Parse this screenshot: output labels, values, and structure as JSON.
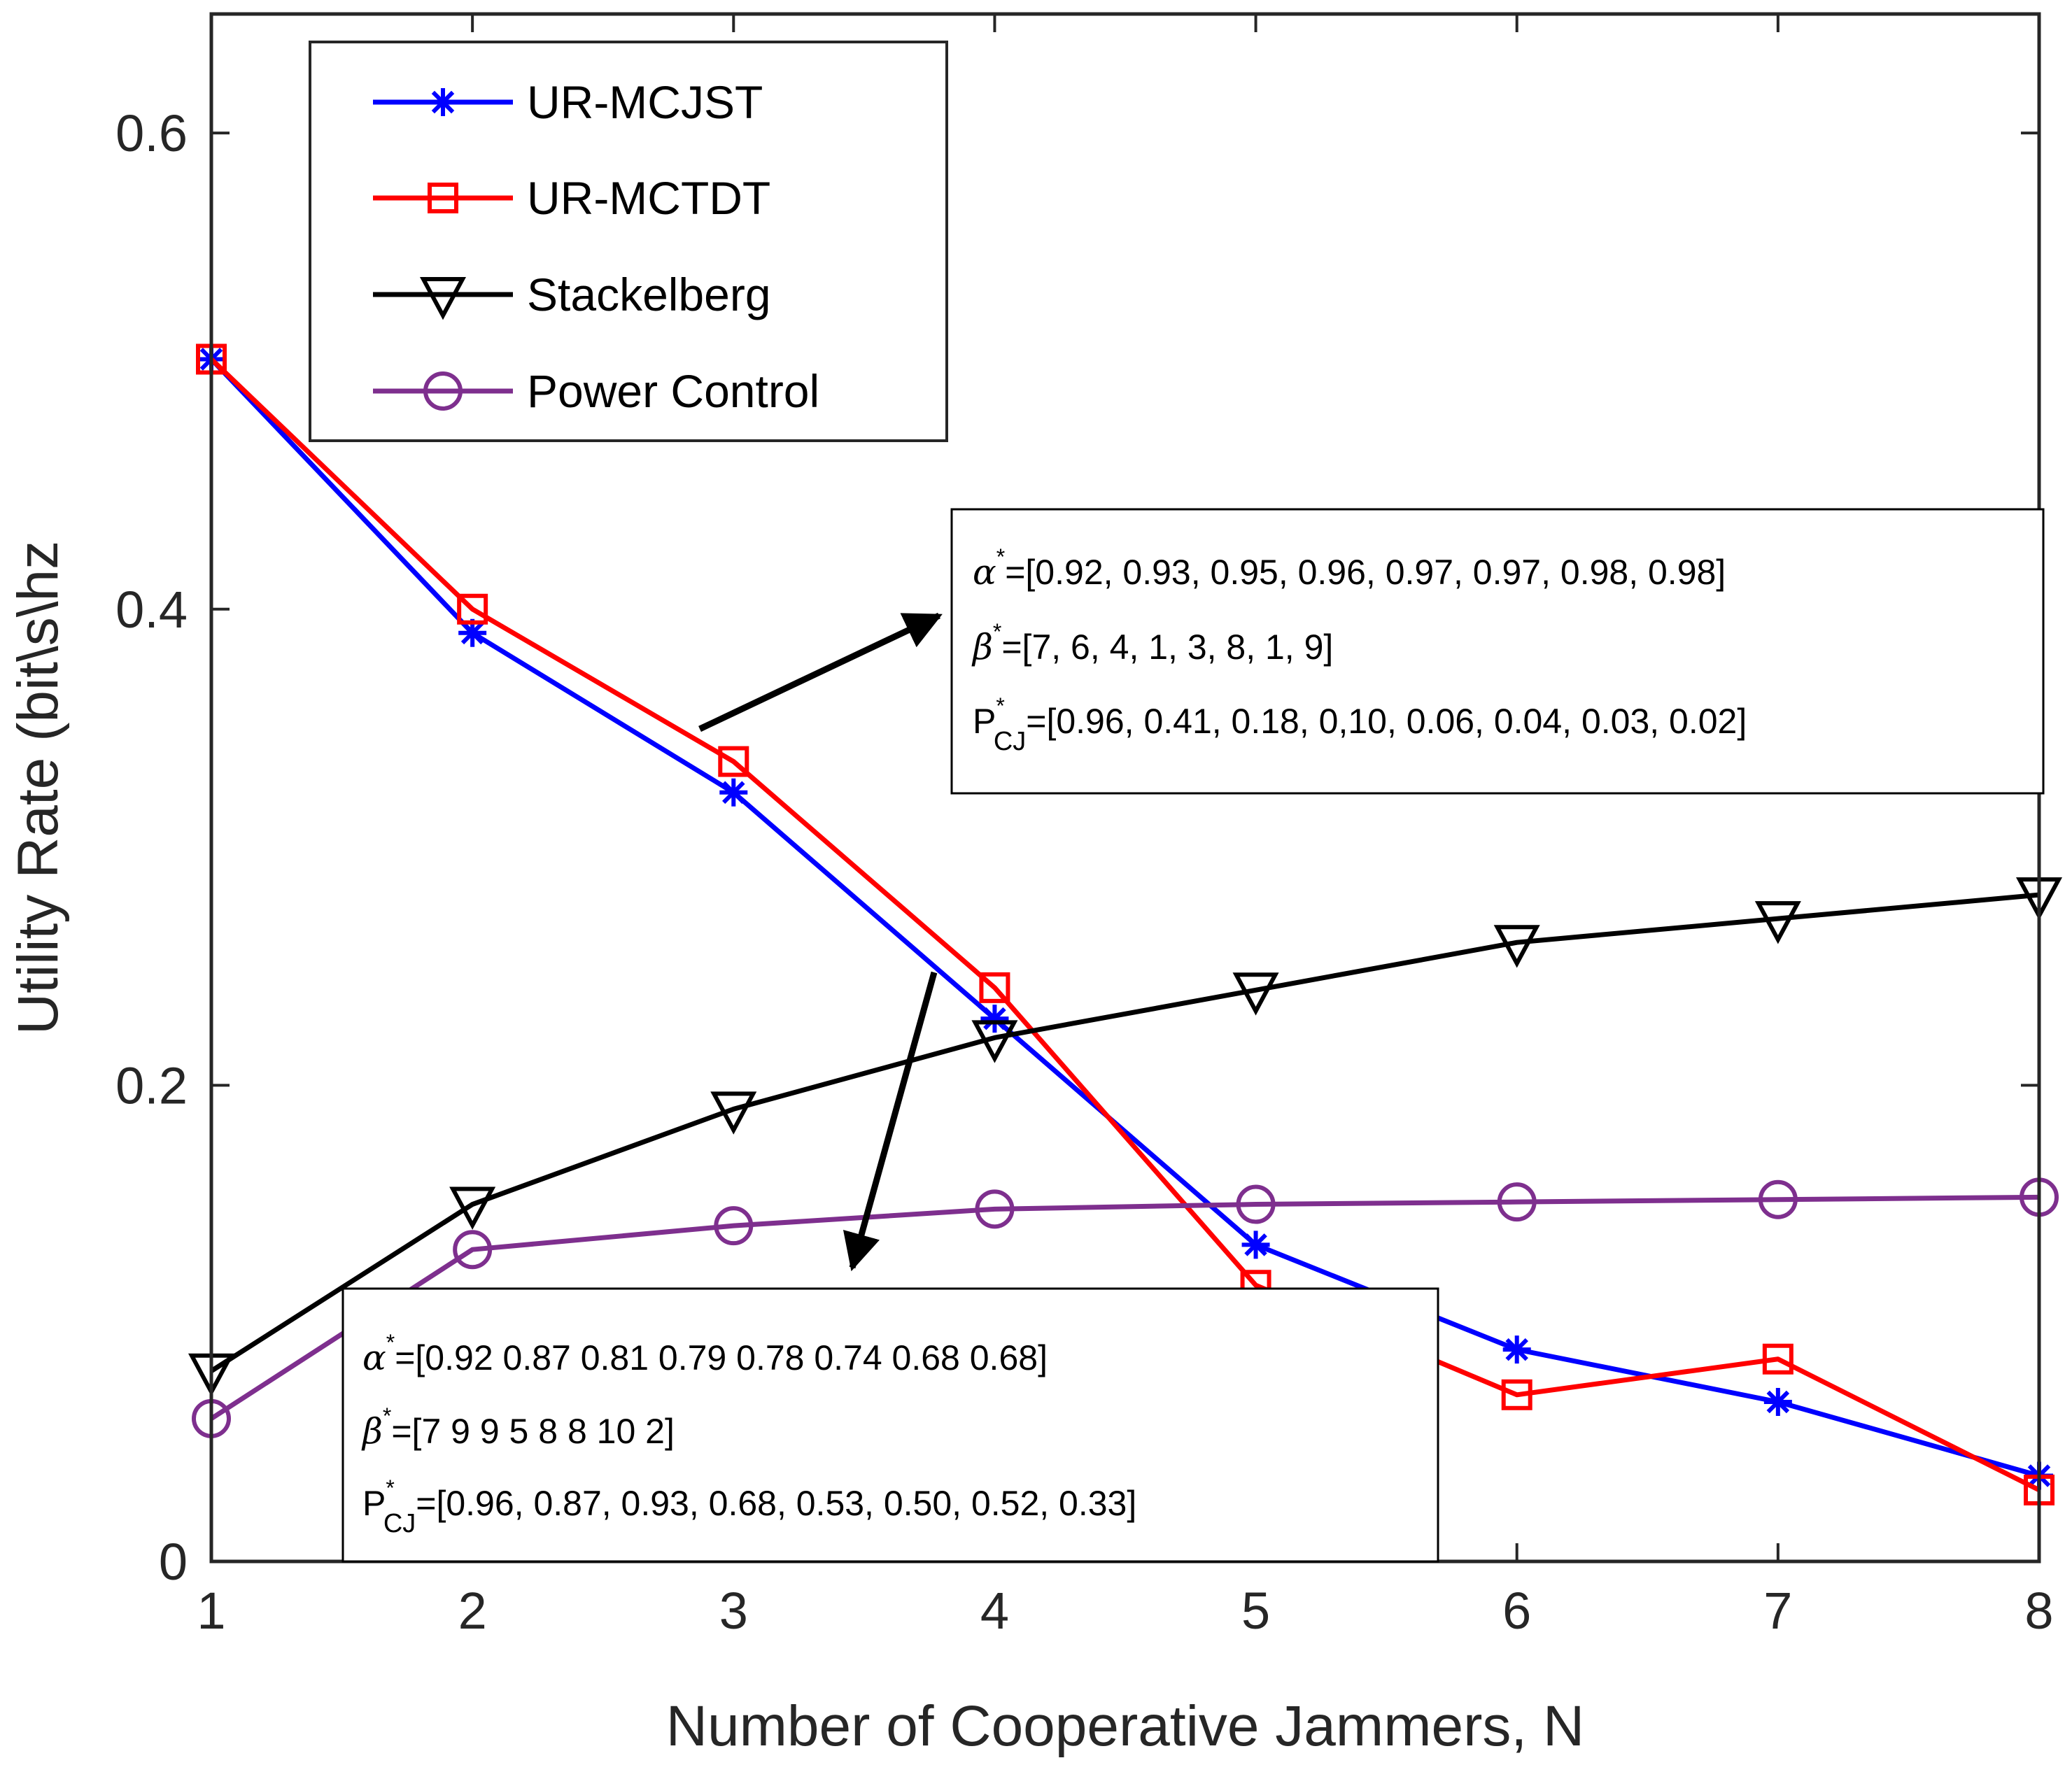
{
  "chart_data": {
    "type": "line",
    "title": "",
    "xlabel": "Number of Cooperative Jammers, N",
    "ylabel": "Utility Rate (bit\\s\\hz",
    "x": [
      1,
      2,
      3,
      4,
      5,
      6,
      7,
      8
    ],
    "xlim": [
      1,
      8
    ],
    "ylim": [
      0,
      0.65
    ],
    "xticks": [
      "1",
      "2",
      "3",
      "4",
      "5",
      "6",
      "7",
      "8"
    ],
    "yticks": [
      {
        "value": 0,
        "label": "0"
      },
      {
        "value": 0.2,
        "label": "0.2"
      },
      {
        "value": 0.4,
        "label": "0.4"
      },
      {
        "value": 0.6,
        "label": "0.6"
      }
    ],
    "grid": false,
    "legend_position": "top-left",
    "series": [
      {
        "name": "UR-MCJST",
        "color": "#0000ff",
        "marker": "asterisk",
        "values": [
          0.505,
          0.39,
          0.323,
          0.228,
          0.133,
          0.089,
          0.067,
          0.036
        ]
      },
      {
        "name": "UR-MCTDT",
        "color": "#ff0000",
        "marker": "square",
        "values": [
          0.505,
          0.4,
          0.336,
          0.241,
          0.116,
          0.07,
          0.085,
          0.03
        ]
      },
      {
        "name": "Stackelberg",
        "color": "#000000",
        "marker": "triangle-down",
        "values": [
          0.08,
          0.15,
          0.19,
          0.22,
          0.24,
          0.26,
          0.27,
          0.28
        ]
      },
      {
        "name": "Power Control",
        "color": "#7e2f8e",
        "marker": "circle",
        "values": [
          0.06,
          0.131,
          0.141,
          0.148,
          0.15,
          0.151,
          0.152,
          0.153
        ]
      }
    ],
    "annotations": [
      {
        "alpha": {
          "symbol": "α",
          "star": "*",
          "text": "=[0.92, 0.93, 0.95, 0.96, 0.97, 0.97, 0.98, 0.98]"
        },
        "beta": {
          "symbol": "β",
          "star": "*",
          "text": "=[7, 6, 4, 1, 3, 8, 1, 9]"
        },
        "pcj": {
          "symbol": "P",
          "star": "*",
          "sub": "CJ",
          "text": "=[0.96, 0.41,  0.18, 0,10, 0.06, 0.04, 0.03, 0.02]"
        }
      },
      {
        "alpha": {
          "symbol": "α",
          "star": "*",
          "text": "=[0.92 0.87 0.81 0.79 0.78 0.74  0.68 0.68]"
        },
        "beta": {
          "symbol": "β",
          "star": "*",
          "text": "=[7 9 9 5 8 8 10 2]"
        },
        "pcj": {
          "symbol": "P",
          "star": "*",
          "sub": "CJ",
          "text": "=[0.96, 0.87, 0.93, 0.68, 0.53, 0.50, 0.52, 0.33]"
        }
      }
    ]
  }
}
